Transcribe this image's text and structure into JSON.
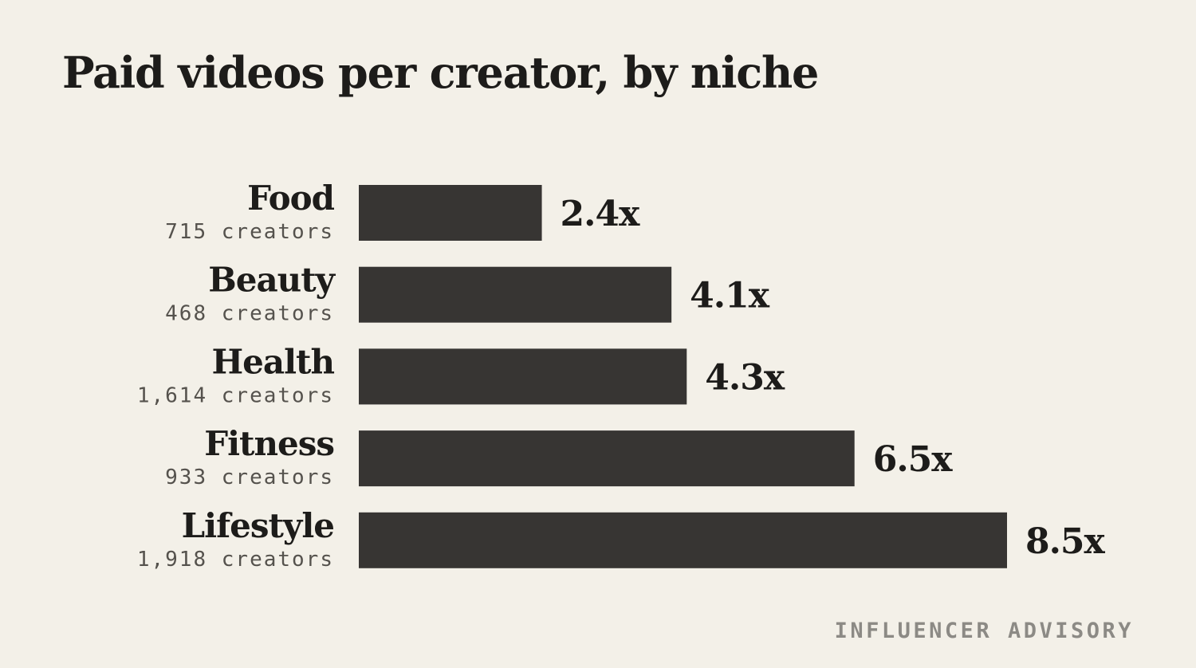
{
  "colors": {
    "background": "#f3f0e8",
    "bar": "#373533",
    "text": "#1d1c1a",
    "subtext": "#55524d",
    "footer": "#8c8a85"
  },
  "footer": {
    "brand": "INFLUENCER ADVISORY"
  },
  "chart_data": {
    "type": "bar",
    "orientation": "horizontal",
    "title": "Paid videos per creator, by niche",
    "xlabel": "",
    "ylabel": "",
    "xlim": [
      0,
      8.5
    ],
    "grid": false,
    "legend": "none",
    "categories": [
      "Food",
      "Beauty",
      "Health",
      "Fitness",
      "Lifestyle"
    ],
    "subtitles": [
      "715 creators",
      "468 creators",
      "1,614 creators",
      "933 creators",
      "1,918 creators"
    ],
    "values": [
      2.4,
      4.1,
      4.3,
      6.5,
      8.5
    ],
    "value_labels": [
      "2.4x",
      "4.1x",
      "4.3x",
      "6.5x",
      "8.5x"
    ]
  }
}
